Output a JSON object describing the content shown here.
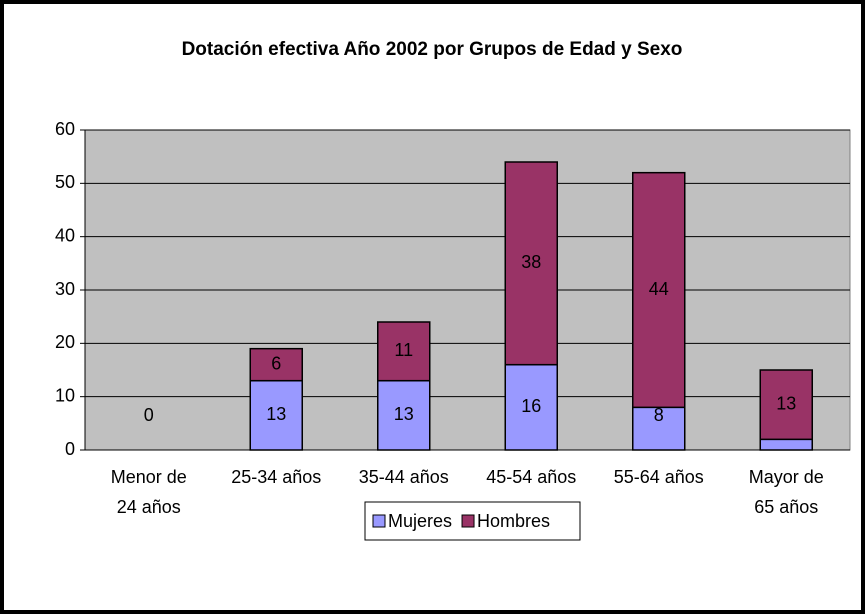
{
  "chart_data": {
    "type": "stacked_bar",
    "title": "Dotación efectiva Año 2002 por Grupos de Edad y Sexo",
    "categories": [
      "Menor de 24 años",
      "25-34 años",
      "35-44 años",
      "45-54 años",
      "55-64 años",
      "Mayor de 65 años"
    ],
    "series": [
      {
        "name": "Mujeres",
        "color": "#9999ff",
        "values": [
          0,
          13,
          13,
          16,
          8,
          2
        ]
      },
      {
        "name": "Hombres",
        "color": "#993366",
        "values": [
          null,
          6,
          11,
          38,
          44,
          13
        ]
      }
    ],
    "ylim": [
      0,
      60
    ],
    "yticks": [
      0,
      10,
      20,
      30,
      40,
      50,
      60
    ],
    "grid": true,
    "legend": "bottom"
  }
}
